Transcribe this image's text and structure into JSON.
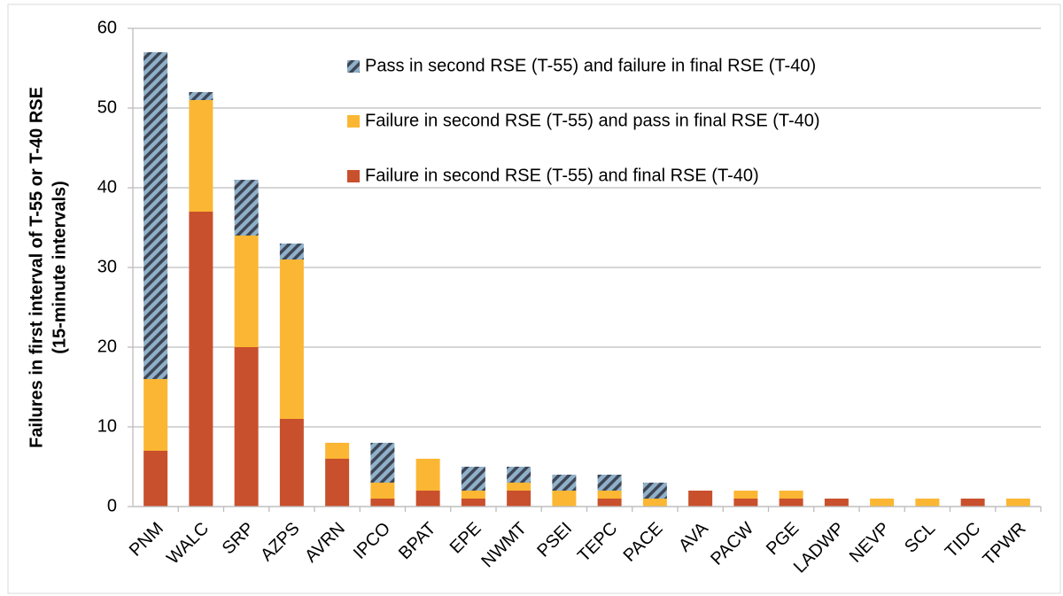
{
  "chart_data": {
    "type": "stacked_bar",
    "y_label": [
      "Failures in first interval of T-55 or T-40 RSE",
      "(15-minute intervals)"
    ],
    "categories": [
      "PNM",
      "WALC",
      "SRP",
      "AZPS",
      "AVRN",
      "IPCO",
      "BPAT",
      "EPE",
      "NWMT",
      "PSEI",
      "TEPC",
      "PACE",
      "AVA",
      "PACW",
      "PGE",
      "LADWP",
      "NEVP",
      "SCL",
      "TIDC",
      "TPWR"
    ],
    "series": [
      {
        "name": "Failure in second RSE (T-55) and final RSE (T-40)",
        "color": "#c9502c",
        "values": [
          7,
          37,
          20,
          11,
          6,
          1,
          2,
          1,
          2,
          0,
          1,
          0,
          2,
          1,
          1,
          1,
          0,
          0,
          1,
          0
        ]
      },
      {
        "name": "Failure in second RSE (T-55) and pass in final RSE (T-40)",
        "color": "#fbb733",
        "values": [
          9,
          14,
          14,
          20,
          2,
          2,
          4,
          1,
          1,
          2,
          1,
          1,
          0,
          1,
          1,
          0,
          1,
          1,
          0,
          1
        ]
      },
      {
        "name": "Pass in second RSE (T-55) and failure in final RSE (T-40)",
        "color": "#8fb0c8",
        "hatch_color": "#3e4656",
        "values": [
          41,
          1,
          7,
          2,
          0,
          5,
          0,
          3,
          2,
          2,
          2,
          2,
          0,
          0,
          0,
          0,
          0,
          0,
          0,
          0
        ]
      }
    ],
    "ylim": [
      0,
      60
    ],
    "yticks": [
      0,
      10,
      20,
      30,
      40,
      50,
      60
    ],
    "grid": true
  }
}
